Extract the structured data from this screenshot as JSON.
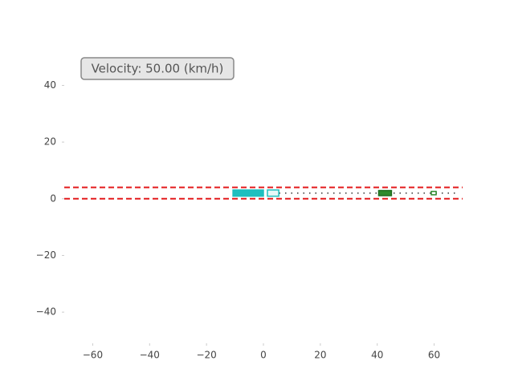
{
  "chart_data": {
    "type": "lanes",
    "annotation": "Velocity: 50.00 (km/h)",
    "xlim": [
      -70,
      70
    ],
    "ylim": [
      -51,
      54
    ],
    "xticks": [
      {
        "value": -60,
        "label": "−60"
      },
      {
        "value": -40,
        "label": "−40"
      },
      {
        "value": -20,
        "label": "−20"
      },
      0,
      20,
      40,
      60
    ],
    "yticks": [
      {
        "value": -40,
        "label": "−40"
      },
      {
        "value": -20,
        "label": "−20"
      },
      0,
      20,
      40
    ],
    "lane_lines": [
      {
        "y": 0,
        "color": "#e31a1c"
      },
      {
        "y": 4,
        "color": "#e31a1c"
      }
    ],
    "dotted_lines": [
      {
        "y": 2,
        "x": [
          5.5,
          68
        ]
      }
    ],
    "vehicles": [
      {
        "x": [
          -10.7,
          0
        ],
        "y": [
          0.9,
          3.1
        ],
        "fill": "#1fbfbf",
        "stroke": "#1fbfbf"
      },
      {
        "x": [
          1.4,
          5.4
        ],
        "y": [
          0.9,
          3.1
        ],
        "fill": "#e8f8f8",
        "stroke": "#1fbfbf"
      },
      {
        "x": [
          40.5,
          45
        ],
        "y": [
          1.1,
          2.9
        ],
        "fill": "#2e8b2e",
        "stroke": "#1e6b1e"
      },
      {
        "x": [
          59,
          60.7
        ],
        "y": [
          1.4,
          2.6
        ],
        "fill": "#ffffff",
        "stroke": "#2e8b2e"
      }
    ]
  }
}
